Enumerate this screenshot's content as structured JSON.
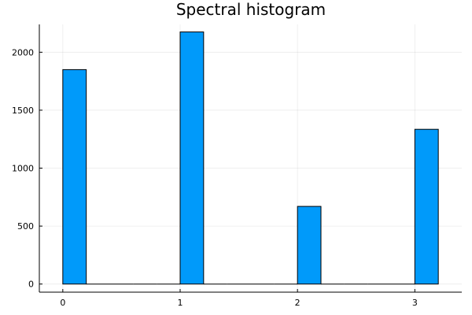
{
  "chart_data": {
    "type": "bar",
    "title": "Spectral histogram",
    "xlabel": "",
    "ylabel": "",
    "bins": [
      {
        "x0": 0.0,
        "x1": 0.2,
        "value": 1850
      },
      {
        "x0": 0.2,
        "x1": 0.4,
        "value": 0
      },
      {
        "x0": 0.4,
        "x1": 0.6,
        "value": 0
      },
      {
        "x0": 0.6,
        "x1": 0.8,
        "value": 0
      },
      {
        "x0": 0.8,
        "x1": 1.0,
        "value": 0
      },
      {
        "x0": 1.0,
        "x1": 1.2,
        "value": 2175
      },
      {
        "x0": 1.2,
        "x1": 1.4,
        "value": 0
      },
      {
        "x0": 1.4,
        "x1": 1.6,
        "value": 0
      },
      {
        "x0": 1.6,
        "x1": 1.8,
        "value": 0
      },
      {
        "x0": 1.8,
        "x1": 2.0,
        "value": 0
      },
      {
        "x0": 2.0,
        "x1": 2.2,
        "value": 670
      },
      {
        "x0": 2.2,
        "x1": 2.4,
        "value": 0
      },
      {
        "x0": 2.4,
        "x1": 2.6,
        "value": 0
      },
      {
        "x0": 2.6,
        "x1": 2.8,
        "value": 0
      },
      {
        "x0": 2.8,
        "x1": 3.0,
        "value": 0
      },
      {
        "x0": 3.0,
        "x1": 3.2,
        "value": 1335
      }
    ],
    "xlim": [
      -0.2,
      3.4
    ],
    "ylim": [
      -70,
      2240
    ],
    "xticks": [
      0,
      1,
      2,
      3
    ],
    "yticks": [
      0,
      500,
      1000,
      1500,
      2000
    ],
    "grid": true,
    "legend": "none",
    "bar_color": "#009AFA",
    "outline_color": "#000000"
  }
}
